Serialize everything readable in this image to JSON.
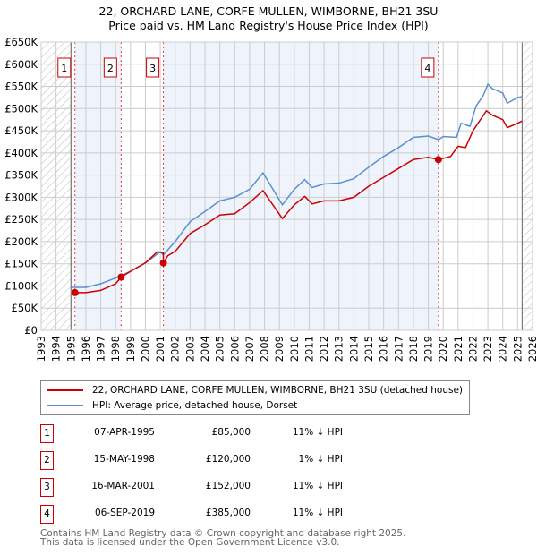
{
  "chart_data": {
    "type": "line",
    "title": "22, ORCHARD LANE, CORFE MULLEN, WIMBORNE, BH21 3SU",
    "subtitle": "Price paid vs. HM Land Registry's House Price Index (HPI)",
    "xlim": [
      1993,
      2026
    ],
    "ylim": [
      0,
      650000
    ],
    "x_ticks": [
      "1993",
      "1994",
      "1995",
      "1996",
      "1997",
      "1998",
      "1999",
      "2000",
      "2001",
      "2002",
      "2003",
      "2004",
      "2005",
      "2006",
      "2007",
      "2008",
      "2009",
      "2010",
      "2011",
      "2012",
      "2013",
      "2014",
      "2015",
      "2016",
      "2017",
      "2018",
      "2019",
      "2020",
      "2021",
      "2022",
      "2023",
      "2024",
      "2025",
      "2026"
    ],
    "y_ticks": [
      {
        "v": 0,
        "l": "£0"
      },
      {
        "v": 50000,
        "l": "£50K"
      },
      {
        "v": 100000,
        "l": "£100K"
      },
      {
        "v": 150000,
        "l": "£150K"
      },
      {
        "v": 200000,
        "l": "£200K"
      },
      {
        "v": 250000,
        "l": "£250K"
      },
      {
        "v": 300000,
        "l": "£300K"
      },
      {
        "v": 350000,
        "l": "£350K"
      },
      {
        "v": 400000,
        "l": "£400K"
      },
      {
        "v": 450000,
        "l": "£450K"
      },
      {
        "v": 500000,
        "l": "£500K"
      },
      {
        "v": 550000,
        "l": "£550K"
      },
      {
        "v": 600000,
        "l": "£600K"
      },
      {
        "v": 650000,
        "l": "£650K"
      }
    ],
    "grid": true,
    "data_range": [
      1995.0,
      2025.3
    ],
    "series": [
      {
        "name": "22, ORCHARD LANE, CORFE MULLEN, WIMBORNE, BH21 3SU (detached house)",
        "color": "#cc0000",
        "x": [
          1995.27,
          1996,
          1997,
          1998,
          1998.37,
          1999,
          2000,
          2000.8,
          2001.2,
          2001.21,
          2001.5,
          2002,
          2003,
          2004,
          2005,
          2006,
          2007,
          2007.9,
          2009.2,
          2010,
          2010.7,
          2011.2,
          2012,
          2013,
          2014,
          2015,
          2016,
          2017,
          2018,
          2019,
          2019.68,
          2020.5,
          2021,
          2021.5,
          2022,
          2022.9,
          2023.3,
          2024,
          2024.3,
          2025,
          2025.3
        ],
        "y": [
          85000,
          85000,
          90000,
          105000,
          120000,
          133000,
          152000,
          177000,
          175000,
          152000,
          168000,
          178000,
          218000,
          238000,
          260000,
          263000,
          288000,
          315000,
          252000,
          283000,
          302000,
          285000,
          292000,
          292000,
          300000,
          325000,
          345000,
          365000,
          385000,
          390000,
          385000,
          392000,
          415000,
          412000,
          450000,
          495000,
          485000,
          475000,
          457000,
          467000,
          472000
        ]
      },
      {
        "name": "HPI: Average price, detached house, Dorset",
        "color": "#5b8fd0",
        "x": [
          1995,
          1996,
          1997,
          1998,
          1999,
          2000,
          2001,
          2001.2,
          2002,
          2003,
          2004,
          2005,
          2006,
          2007,
          2007.9,
          2009.2,
          2010,
          2010.7,
          2011.2,
          2012,
          2013,
          2014,
          2015,
          2016,
          2017,
          2018,
          2019,
          2019.7,
          2020,
          2020.9,
          2021.2,
          2021.8,
          2022.2,
          2022.7,
          2023,
          2023.3,
          2024,
          2024.3,
          2025,
          2025.3
        ],
        "y": [
          97000,
          97000,
          105000,
          118000,
          133000,
          152000,
          177000,
          170000,
          200000,
          245000,
          268000,
          292000,
          300000,
          318000,
          355000,
          283000,
          318000,
          340000,
          322000,
          330000,
          332000,
          342000,
          368000,
          392000,
          412000,
          435000,
          438000,
          430000,
          437000,
          435000,
          467000,
          460000,
          505000,
          530000,
          555000,
          545000,
          535000,
          512000,
          525000,
          527000
        ]
      }
    ],
    "sales": [
      {
        "n": "1",
        "x": 1995.27,
        "date": "07-APR-1995",
        "price": "£85,000",
        "value": 85000,
        "hpi": "11% ↓ HPI"
      },
      {
        "n": "2",
        "x": 1998.37,
        "date": "15-MAY-1998",
        "price": "£120,000",
        "value": 120000,
        "hpi": "1% ↓ HPI"
      },
      {
        "n": "3",
        "x": 2001.21,
        "date": "16-MAR-2001",
        "price": "£152,000",
        "value": 152000,
        "hpi": "11% ↓ HPI"
      },
      {
        "n": "4",
        "x": 2019.68,
        "date": "06-SEP-2019",
        "price": "£385,000",
        "value": 385000,
        "hpi": "11% ↓ HPI"
      }
    ],
    "legend_placement": "below"
  },
  "legend": {
    "red": "22, ORCHARD LANE, CORFE MULLEN, WIMBORNE, BH21 3SU (detached house)",
    "blue": "HPI: Average price, detached house, Dorset"
  },
  "footer": {
    "line1": "Contains HM Land Registry data © Crown copyright and database right 2025.",
    "line2": "This data is licensed under the Open Government Licence v3.0."
  }
}
